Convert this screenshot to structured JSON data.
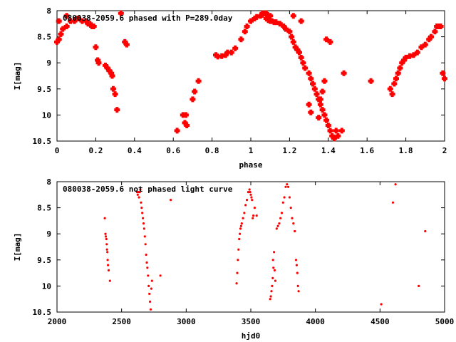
{
  "chart_data": [
    {
      "type": "scatter",
      "title": "080038-2059.6 phased with P=289.0day",
      "xlabel": "phase",
      "ylabel": "I[mag]",
      "xlim": [
        0,
        2
      ],
      "ylim": [
        10.5,
        8
      ],
      "y_inverted": true,
      "grid": false,
      "legend": "none",
      "marker": "plus-bold",
      "color": "#ff0000",
      "xticks": [
        0,
        0.2,
        0.4,
        0.6,
        0.8,
        1,
        1.2,
        1.4,
        1.6,
        1.8,
        2
      ],
      "xtick_labels": [
        "0",
        "0.2",
        "0.4",
        "0.6",
        "0.8",
        "1",
        "1.2",
        "1.4",
        "1.6",
        "1.8",
        "2"
      ],
      "yticks": [
        8,
        8.5,
        9,
        9.5,
        10,
        10.5
      ],
      "ytick_labels": [
        "8",
        "8.5",
        "9",
        "9.5",
        "10",
        "10.5"
      ],
      "series": [
        {
          "x": [
            0.0,
            0.01,
            0.02,
            0.03,
            0.05,
            0.07,
            0.09,
            0.1,
            0.11,
            0.13,
            0.15,
            0.16,
            0.17,
            0.18,
            0.19,
            0.2,
            0.21,
            0.215,
            0.25,
            0.26,
            0.27,
            0.28,
            0.285,
            0.29,
            0.3,
            0.31,
            0.33,
            0.35,
            0.36,
            0.62,
            0.65,
            0.66,
            0.665,
            0.67,
            0.7,
            0.71,
            0.73,
            0.82,
            0.83,
            0.85,
            0.87,
            0.88,
            0.9,
            0.92,
            0.95,
            0.97,
            0.98,
            1.0,
            1.02,
            1.03,
            1.05,
            1.06,
            1.07,
            1.08,
            1.09,
            1.1,
            1.11,
            1.12,
            1.13,
            1.15,
            1.17,
            1.18,
            1.2,
            1.21,
            1.22,
            1.23,
            1.24,
            1.25,
            1.26,
            1.27,
            1.28,
            1.3,
            1.31,
            1.32,
            1.33,
            1.34,
            1.35,
            1.36,
            1.37,
            1.38,
            1.39,
            1.4,
            1.41,
            1.42,
            1.43,
            1.44,
            1.45,
            1.47,
            1.48,
            1.62,
            1.72,
            1.73,
            1.74,
            1.75,
            1.76,
            1.77,
            1.78,
            1.79,
            1.8,
            1.82,
            1.84,
            1.86,
            1.88,
            1.9,
            1.92,
            1.93,
            1.95,
            1.96,
            1.97,
            1.98,
            1.99,
            2.0,
            1.3,
            1.31,
            1.35,
            1.36,
            1.37,
            1.38,
            1.39,
            1.41,
            1.22,
            1.26,
            0.01,
            0.05,
            1.06,
            1.08,
            1.1
          ],
          "y": [
            8.6,
            8.55,
            8.45,
            8.35,
            8.3,
            8.2,
            8.2,
            8.15,
            8.15,
            8.2,
            8.2,
            8.25,
            8.25,
            8.3,
            8.3,
            8.7,
            8.95,
            9.0,
            9.05,
            9.1,
            9.15,
            9.2,
            9.25,
            9.5,
            9.6,
            9.9,
            8.05,
            8.6,
            8.65,
            10.3,
            10.0,
            10.15,
            10.0,
            10.2,
            9.7,
            9.55,
            9.35,
            8.85,
            8.88,
            8.87,
            8.85,
            8.8,
            8.8,
            8.72,
            8.55,
            8.4,
            8.3,
            8.2,
            8.15,
            8.12,
            8.1,
            8.08,
            8.05,
            8.15,
            8.18,
            8.2,
            8.2,
            8.22,
            8.22,
            8.25,
            8.3,
            8.35,
            8.4,
            8.5,
            8.6,
            8.7,
            8.75,
            8.8,
            8.9,
            9.0,
            9.1,
            9.2,
            9.3,
            9.4,
            9.5,
            9.6,
            9.7,
            9.8,
            9.9,
            10.0,
            10.1,
            10.2,
            10.3,
            10.4,
            10.45,
            10.3,
            10.4,
            10.3,
            9.2,
            9.35,
            9.5,
            9.6,
            9.4,
            9.3,
            9.2,
            9.1,
            9.0,
            8.95,
            8.9,
            8.87,
            8.85,
            8.8,
            8.7,
            8.65,
            8.55,
            8.5,
            8.4,
            8.3,
            8.3,
            8.3,
            9.2,
            9.3,
            9.8,
            9.95,
            10.05,
            9.7,
            9.55,
            9.35,
            8.55,
            8.6,
            8.1,
            8.2,
            8.2,
            8.1,
            8.05,
            8.05,
            8.1
          ]
        }
      ]
    },
    {
      "type": "scatter",
      "title": "080038-2059.6 not phased light curve",
      "xlabel": "hjd0",
      "ylabel": "I[mag]",
      "xlim": [
        2000,
        5000
      ],
      "ylim": [
        10.5,
        8
      ],
      "y_inverted": true,
      "grid": false,
      "legend": "none",
      "marker": "dot",
      "color": "#ff0000",
      "xticks": [
        2000,
        2500,
        3000,
        3500,
        4000,
        4500,
        5000
      ],
      "xtick_labels": [
        "2000",
        "2500",
        "3000",
        "3500",
        "4000",
        "4500",
        "5000"
      ],
      "yticks": [
        8,
        8.5,
        9,
        9.5,
        10,
        10.5
      ],
      "ytick_labels": [
        "8",
        "8.5",
        "9",
        "9.5",
        "10",
        "10.5"
      ],
      "series": [
        {
          "x": [
            2370,
            2375,
            2378,
            2382,
            2385,
            2387,
            2390,
            2392,
            2395,
            2400,
            2410,
            2620,
            2625,
            2630,
            2635,
            2640,
            2645,
            2650,
            2655,
            2660,
            2665,
            2670,
            2675,
            2680,
            2685,
            2690,
            2695,
            2700,
            2705,
            2710,
            2715,
            2720,
            2725,
            2730,
            2735,
            2800,
            2880,
            3390,
            3395,
            3400,
            3405,
            3410,
            3415,
            3420,
            3425,
            3430,
            3440,
            3450,
            3460,
            3470,
            3480,
            3490,
            3495,
            3500,
            3505,
            3510,
            3515,
            3520,
            3530,
            3545,
            3650,
            3655,
            3660,
            3665,
            3670,
            3672,
            3675,
            3680,
            3685,
            3690,
            3700,
            3710,
            3720,
            3730,
            3740,
            3750,
            3760,
            3770,
            3780,
            3790,
            3800,
            3810,
            3820,
            3830,
            3840,
            3850,
            3855,
            3860,
            3865,
            3870,
            4510,
            4600,
            4620,
            4800,
            4850
          ],
          "y": [
            8.7,
            9.0,
            9.05,
            9.1,
            9.2,
            9.3,
            9.35,
            9.5,
            9.6,
            9.7,
            9.9,
            8.2,
            8.25,
            8.2,
            8.3,
            8.2,
            8.15,
            8.4,
            8.5,
            8.6,
            8.7,
            8.8,
            8.9,
            9.05,
            9.2,
            9.4,
            9.55,
            9.65,
            9.8,
            10.0,
            10.15,
            10.3,
            10.45,
            10.05,
            9.9,
            9.8,
            8.35,
            9.95,
            9.75,
            9.5,
            9.3,
            9.1,
            9.0,
            8.9,
            8.85,
            8.8,
            8.7,
            8.6,
            8.45,
            8.35,
            8.2,
            8.15,
            8.2,
            8.25,
            8.3,
            8.35,
            8.7,
            8.65,
            8.5,
            8.65,
            10.25,
            10.2,
            10.1,
            10.0,
            9.85,
            9.5,
            9.65,
            9.35,
            9.7,
            9.9,
            8.9,
            8.85,
            8.8,
            8.7,
            8.6,
            8.4,
            8.3,
            8.1,
            8.05,
            8.1,
            8.3,
            8.5,
            8.7,
            8.8,
            8.95,
            9.5,
            9.6,
            9.75,
            10.0,
            10.1,
            10.35,
            8.4,
            8.05,
            10.0,
            8.95
          ]
        }
      ]
    }
  ]
}
